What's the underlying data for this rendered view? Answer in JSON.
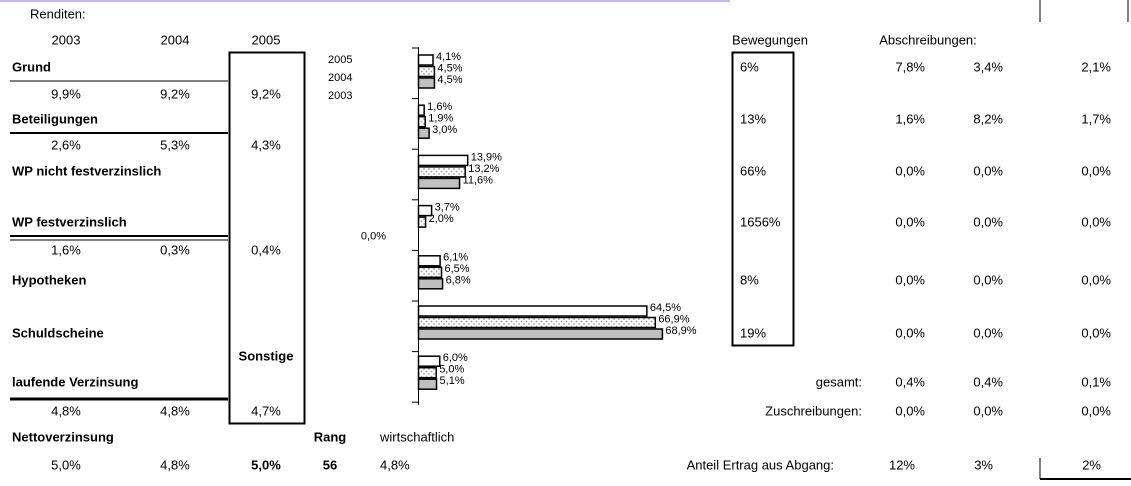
{
  "renditen_label": "Renditen:",
  "years": [
    "2003",
    "2004",
    "2005"
  ],
  "rows": [
    {
      "label": "Grund",
      "values": [
        "9,9%",
        "9,2%",
        "9,2%"
      ]
    },
    {
      "label": "Beteiligungen",
      "values": [
        "2,6%",
        "5,3%",
        "4,3%"
      ]
    },
    {
      "label": "WP nicht festverzinslich"
    },
    {
      "label": "WP festverzinslich",
      "values": [
        "1,6%",
        "0,3%",
        "0,4%"
      ]
    },
    {
      "label": "Hypotheken"
    },
    {
      "label": "Schuldscheine"
    },
    {
      "label": "laufende Verzinsung",
      "values": [
        "4,8%",
        "4,8%",
        "4,7%"
      ]
    }
  ],
  "sonstige_label": "Sonstige",
  "net": {
    "label": "Nettoverzinsung",
    "values": [
      "5,0%",
      "4,8%",
      "5,0%"
    ],
    "rang_label": "Rang",
    "rang": "56",
    "wirtschaftlich_label": "wirtschaftlich",
    "wirtschaftlich": "4,8%"
  },
  "bar_chart": {
    "series": [
      {
        "name": "2005",
        "values": [
          4.1,
          1.6,
          13.9,
          3.7,
          6.1,
          64.5,
          6.0
        ],
        "value_labels": [
          "4,1%",
          "1,6%",
          "13,9%",
          "3,7%",
          "6,1%",
          "64,5%",
          "6,0%"
        ]
      },
      {
        "name": "2004",
        "values": [
          4.5,
          1.9,
          13.2,
          2.0,
          6.5,
          66.9,
          5.0
        ],
        "value_labels": [
          "4,5%",
          "1,9%",
          "13,2%",
          "2,0%",
          "6,5%",
          "66,9%",
          "5,0%"
        ]
      },
      {
        "name": "2003",
        "values": [
          4.5,
          3.0,
          11.6,
          0.0,
          6.8,
          68.9,
          5.1
        ],
        "value_labels": [
          "4,5%",
          "3,0%",
          "11,6%",
          "0,0%",
          "6,8%",
          "68,9%",
          "5,1%"
        ]
      }
    ]
  },
  "right": {
    "bewegungen_header": "Bewegungen",
    "abschreibungen_header": "Abschreibungen:",
    "bewegungen": [
      "6%",
      "13%",
      "66%",
      "1656%",
      "8%",
      "19%"
    ],
    "abschreibungen": [
      [
        "7,8%",
        "3,4%",
        "2,1%"
      ],
      [
        "1,6%",
        "8,2%",
        "1,7%"
      ],
      [
        "0,0%",
        "0,0%",
        "0,0%"
      ],
      [
        "0,0%",
        "0,0%",
        "0,0%"
      ],
      [
        "0,0%",
        "0,0%",
        "0,0%"
      ],
      [
        "0,0%",
        "0,0%",
        "0,0%"
      ]
    ],
    "gesamt": {
      "label": "gesamt:",
      "values": [
        "0,4%",
        "0,4%",
        "0,1%"
      ]
    },
    "zuschreibungen": {
      "label": "Zuschreibungen:",
      "values": [
        "0,0%",
        "0,0%",
        "0,0%"
      ]
    },
    "anteil": {
      "label": "Anteil Ertrag aus Abgang:",
      "values": [
        "12%",
        "3%",
        "2%"
      ]
    }
  }
}
